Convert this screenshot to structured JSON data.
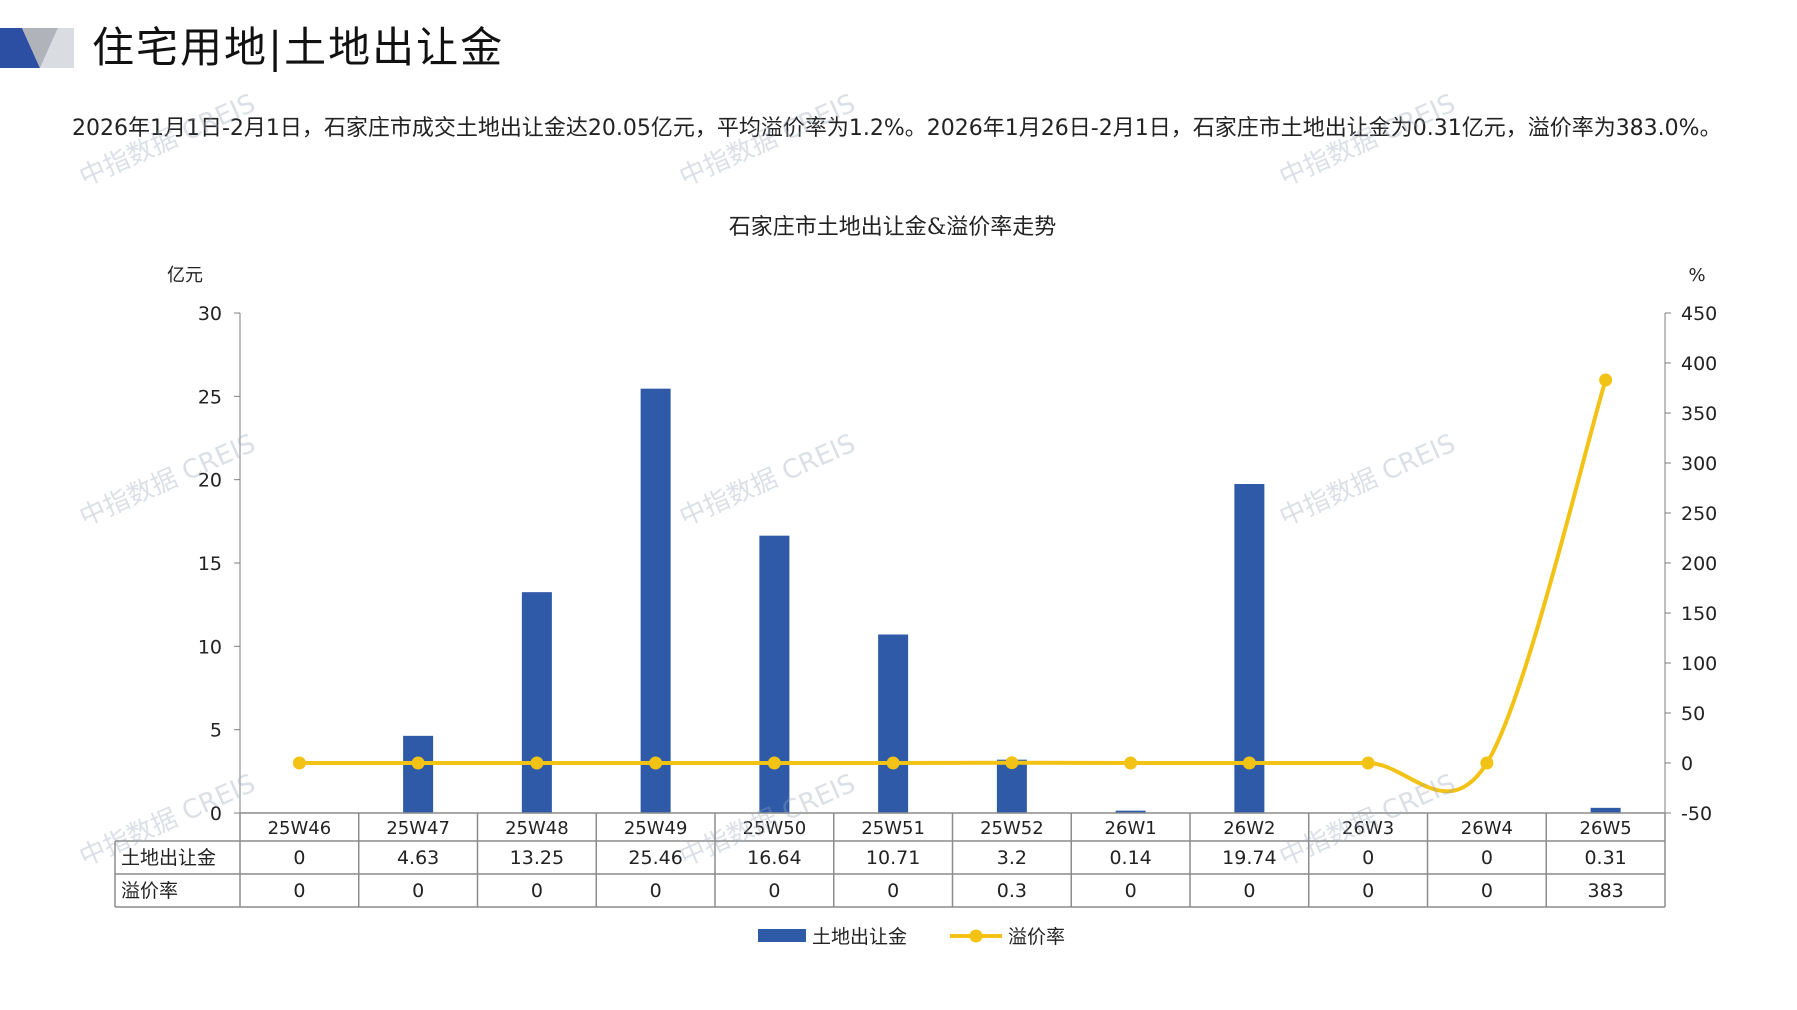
{
  "page": {
    "title": "住宅用地|土地出让金",
    "summary": "2026年1月1日-2月1日，石家庄市成交土地出让金达20.05亿元，平均溢价率为1.2%。2026年1月26日-2月1日，石家庄市土地出让金为0.31亿元，溢价率为383.0%。",
    "watermark_text": "中指数据 CREIS"
  },
  "colors": {
    "bar": "#2e5aa8",
    "line": "#f2c215",
    "axis": "#7f7f7f",
    "header_blue": "#2d4fa3",
    "header_gray": "#b0b4ba"
  },
  "chart_data": {
    "type": "bar",
    "title": "石家庄市土地出让金&溢价率走势",
    "categories": [
      "25W46",
      "25W47",
      "25W48",
      "25W49",
      "25W50",
      "25W51",
      "25W52",
      "26W1",
      "26W2",
      "26W3",
      "26W4",
      "26W5"
    ],
    "series": [
      {
        "name": "土地出让金",
        "type": "bar",
        "axis": "left",
        "values": [
          0,
          4.63,
          13.25,
          25.46,
          16.64,
          10.71,
          3.2,
          0.14,
          19.74,
          0,
          0,
          0.31
        ],
        "table_labels": [
          "0",
          "4.63",
          "13.25",
          "25.46",
          "16.64",
          "10.71",
          "3.2",
          "0.14",
          "19.74",
          "0",
          "0",
          "0.31"
        ]
      },
      {
        "name": "溢价率",
        "type": "line",
        "axis": "right",
        "values": [
          0,
          0,
          0,
          0,
          0,
          0,
          0.3,
          0,
          0,
          0,
          0,
          383
        ],
        "table_labels": [
          "0",
          "0",
          "0",
          "0",
          "0",
          "0",
          "0.3",
          "0",
          "0",
          "0",
          "0",
          "383"
        ]
      }
    ],
    "y_left": {
      "unit": "亿元",
      "min": 0,
      "max": 30,
      "ticks": [
        "0",
        "5",
        "10",
        "15",
        "20",
        "25",
        "30"
      ]
    },
    "y_right": {
      "unit": "%",
      "min": -50,
      "max": 450,
      "ticks": [
        "-50",
        "0",
        "50",
        "100",
        "150",
        "200",
        "250",
        "300",
        "350",
        "400",
        "450"
      ]
    },
    "grid": false,
    "legend": "bottom"
  }
}
